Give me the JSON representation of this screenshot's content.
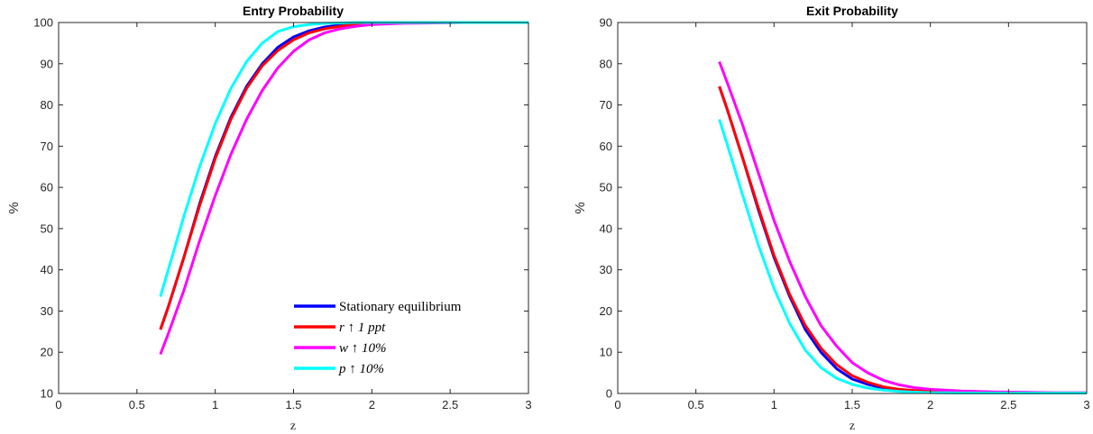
{
  "chart_data": [
    {
      "type": "line",
      "title": "Entry Probability",
      "xlabel": "z",
      "ylabel": "%",
      "xlim": [
        0,
        3
      ],
      "ylim": [
        10,
        100
      ],
      "xticks": [
        "0",
        "0.5",
        "1",
        "1.5",
        "2",
        "2.5",
        "3"
      ],
      "yticks": [
        "10",
        "20",
        "30",
        "40",
        "50",
        "60",
        "70",
        "80",
        "90",
        "100"
      ],
      "legend_position": "bottom-right",
      "x": [
        0.65,
        0.7,
        0.8,
        0.9,
        1.0,
        1.1,
        1.2,
        1.3,
        1.4,
        1.5,
        1.6,
        1.7,
        1.8,
        1.9,
        2.0,
        2.2,
        2.4,
        2.6,
        2.8,
        3.0
      ],
      "series": [
        {
          "name": "Stationary equilibrium",
          "color": "#0000ff",
          "values": [
            25.5,
            31,
            43,
            56,
            67.5,
            77,
            84.5,
            90,
            94,
            96.5,
            98,
            98.9,
            99.4,
            99.7,
            99.8,
            99.9,
            100,
            100,
            100,
            100
          ]
        },
        {
          "name": "r ↑ 1 ppt",
          "color": "#ff0000",
          "values": [
            25.5,
            31,
            43,
            55.5,
            67,
            76.5,
            84,
            89.5,
            93.2,
            95.8,
            97.5,
            98.5,
            99.1,
            99.5,
            99.7,
            99.9,
            100,
            100,
            100,
            100
          ]
        },
        {
          "name": "w ↑ 10%",
          "color": "#ff00ff",
          "values": [
            19.5,
            24.5,
            35,
            47,
            58,
            68,
            76.5,
            83.5,
            89,
            93,
            95.8,
            97.5,
            98.5,
            99.1,
            99.5,
            99.8,
            99.9,
            100,
            100,
            100
          ]
        },
        {
          "name": "p ↑ 10%",
          "color": "#00ffff",
          "values": [
            33.5,
            40,
            53,
            65,
            75.5,
            84,
            90.5,
            95,
            97.8,
            99,
            99.5,
            99.8,
            99.9,
            100,
            100,
            100,
            100,
            100,
            100,
            100
          ]
        }
      ]
    },
    {
      "type": "line",
      "title": "Exit Probability",
      "xlabel": "z",
      "ylabel": "%",
      "xlim": [
        0,
        3
      ],
      "ylim": [
        0,
        90
      ],
      "xticks": [
        "0",
        "0.5",
        "1",
        "1.5",
        "2",
        "2.5",
        "3"
      ],
      "yticks": [
        "0",
        "10",
        "20",
        "30",
        "40",
        "50",
        "60",
        "70",
        "80",
        "90"
      ],
      "x": [
        0.65,
        0.7,
        0.8,
        0.9,
        1.0,
        1.1,
        1.2,
        1.3,
        1.4,
        1.5,
        1.6,
        1.7,
        1.8,
        1.9,
        2.0,
        2.2,
        2.4,
        2.6,
        2.8,
        3.0
      ],
      "series": [
        {
          "name": "Stationary equilibrium",
          "color": "#0000ff",
          "values": [
            74.5,
            69,
            57,
            44.5,
            33,
            23.5,
            15.5,
            10,
            6,
            3.5,
            2.2,
            1.3,
            0.8,
            0.5,
            0.4,
            0.3,
            0.2,
            0.2,
            0.1,
            0.1
          ]
        },
        {
          "name": "r ↑ 1 ppt",
          "color": "#ff0000",
          "values": [
            74.5,
            69,
            57,
            45,
            33.5,
            24,
            16.5,
            11,
            7,
            4.3,
            2.7,
            1.6,
            1.0,
            0.7,
            0.5,
            0.3,
            0.2,
            0.2,
            0.1,
            0.1
          ]
        },
        {
          "name": "w ↑ 10%",
          "color": "#ff00ff",
          "values": [
            80.5,
            75.5,
            65,
            53.5,
            42,
            32,
            23.5,
            16.5,
            11.5,
            7.5,
            5,
            3.2,
            2.1,
            1.4,
            1.0,
            0.6,
            0.4,
            0.3,
            0.2,
            0.2
          ]
        },
        {
          "name": "p ↑ 10%",
          "color": "#00ffff",
          "values": [
            66.5,
            60.5,
            48,
            36,
            25.5,
            17,
            10.5,
            6.3,
            3.7,
            2.2,
            1.3,
            0.8,
            0.5,
            0.3,
            0.2,
            0.1,
            0.1,
            0.1,
            0.1,
            0.1
          ]
        }
      ]
    }
  ]
}
